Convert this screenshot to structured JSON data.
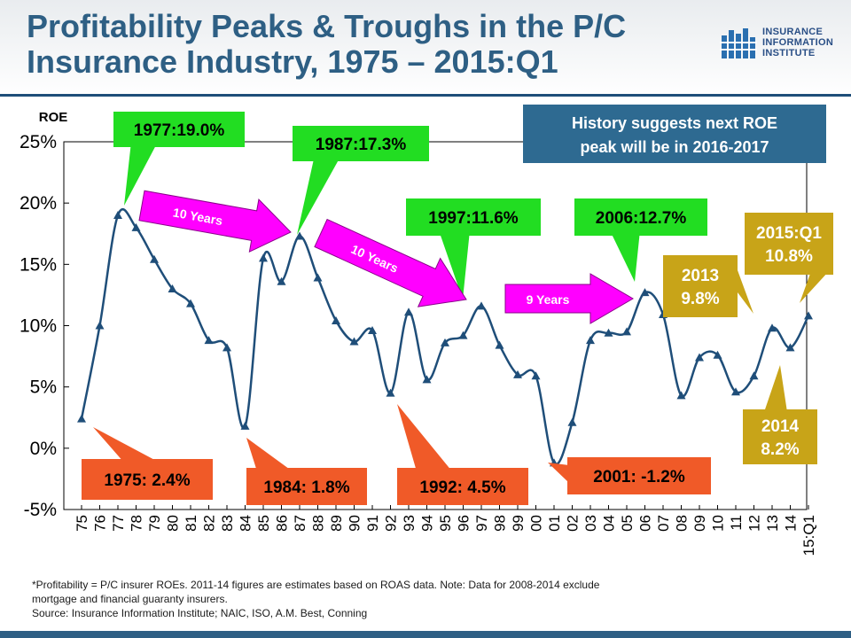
{
  "header": {
    "title_line1": "Profitability Peaks & Troughs in the P/C",
    "title_line2": "Insurance Industry, 1975 – 2015:Q1",
    "logo_line1": "INSURANCE",
    "logo_line2": "INFORMATION",
    "logo_line3": "INSTITUTE"
  },
  "chart_data": {
    "type": "line",
    "ylabel": "ROE",
    "ylim": [
      -5,
      25
    ],
    "yticks": [
      -5,
      0,
      5,
      10,
      15,
      20,
      25
    ],
    "ytick_labels": [
      "-5%",
      "0%",
      "5%",
      "10%",
      "15%",
      "20%",
      "25%"
    ],
    "categories": [
      "75",
      "76",
      "77",
      "78",
      "79",
      "80",
      "81",
      "82",
      "83",
      "84",
      "85",
      "86",
      "87",
      "88",
      "89",
      "90",
      "91",
      "92",
      "93",
      "94",
      "95",
      "96",
      "97",
      "98",
      "99",
      "00",
      "01",
      "02",
      "03",
      "04",
      "05",
      "06",
      "07",
      "08",
      "09",
      "10",
      "11",
      "12",
      "13",
      "14",
      "15:Q1"
    ],
    "values": [
      2.4,
      10.0,
      19.0,
      18.0,
      15.4,
      13.0,
      11.8,
      8.8,
      8.2,
      1.8,
      15.5,
      13.6,
      17.3,
      13.9,
      10.4,
      8.7,
      9.6,
      4.5,
      11.1,
      5.6,
      8.6,
      9.2,
      11.6,
      8.4,
      6.0,
      5.9,
      -1.2,
      2.1,
      8.8,
      9.4,
      9.5,
      12.7,
      10.9,
      4.3,
      7.4,
      7.6,
      4.6,
      5.9,
      9.8,
      8.2,
      10.8
    ],
    "line_color": "#1f4e79",
    "grid": false,
    "callouts": {
      "peak_1977": "1977:19.0%",
      "peak_1987": "1987:17.3%",
      "peak_1997": "1997:11.6%",
      "peak_2006": "2006:12.7%",
      "trough_1975": "1975: 2.4%",
      "trough_1984": "1984: 1.8%",
      "trough_1992": "1992: 4.5%",
      "trough_2001": "2001: -1.2%",
      "q1_2015_line1": "2015:Q1",
      "q1_2015_line2": "10.8%",
      "y2013_line1": "2013",
      "y2013_line2": "9.8%",
      "y2014_line1": "2014",
      "y2014_line2": "8.2%",
      "history_line1": "History suggests next ROE",
      "history_line2": "peak will be in 2016-2017",
      "arrow1": "10 Years",
      "arrow2": "10 Years",
      "arrow3": "9 Years"
    },
    "colors": {
      "peak": "#22dd22",
      "trough": "#f05a28",
      "gold": "#c8a418",
      "arrow": "#ff00ff",
      "history_box": "#2e6a91"
    }
  },
  "footnote": {
    "line1": "*Profitability =  P/C insurer ROEs. 2011-14 figures are estimates based on ROAS data.  Note:  Data for 2008-2014 exclude",
    "line2": "mortgage and financial guaranty insurers.",
    "line3": "Source:  Insurance Information Institute; NAIC, ISO, A.M. Best, Conning"
  }
}
